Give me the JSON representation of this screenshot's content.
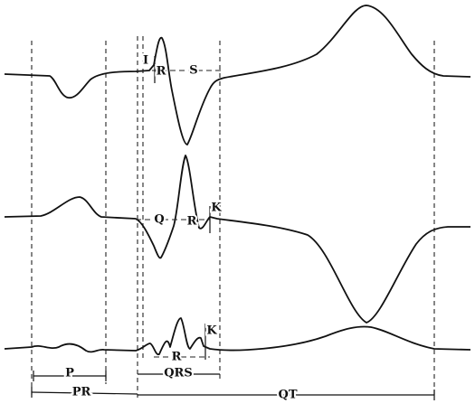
{
  "traces": {
    "top": {
      "labels": [
        "I",
        "R",
        "S"
      ]
    },
    "middle": {
      "labels": [
        "Q",
        "R",
        "K"
      ]
    },
    "bottom": {
      "labels": [
        "R",
        "K"
      ]
    }
  },
  "intervals": {
    "p": "P",
    "pr": "PR",
    "qrs": "QRS",
    "qt": "QT"
  }
}
